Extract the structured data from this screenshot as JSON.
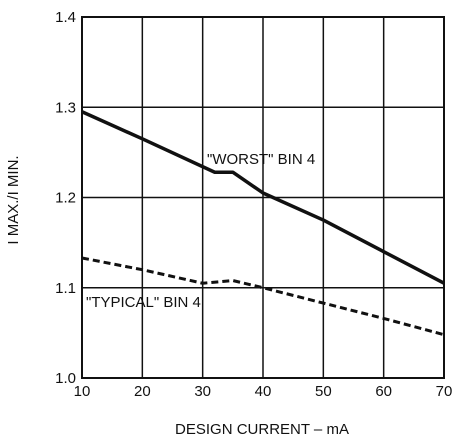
{
  "chart_data": {
    "type": "line",
    "xlabel": "DESIGN CURRENT – mA",
    "ylabel": "I MAX./I MIN.",
    "xlim": [
      10,
      70
    ],
    "ylim": [
      1.0,
      1.4
    ],
    "x_ticks": [
      "10",
      "20",
      "30",
      "40",
      "50",
      "60",
      "70"
    ],
    "y_ticks": [
      "1.0",
      "1.1",
      "1.2",
      "1.3",
      "1.4"
    ],
    "grid": true,
    "series": [
      {
        "name": "\"WORST\" BIN 4",
        "style": "solid",
        "x": [
          10,
          20,
          32,
          35,
          40,
          50,
          60,
          70
        ],
        "y": [
          1.295,
          1.265,
          1.228,
          1.228,
          1.205,
          1.175,
          1.14,
          1.105
        ]
      },
      {
        "name": "\"TYPICAL\" BIN 4",
        "style": "dashed",
        "x": [
          10,
          20,
          30,
          35,
          40,
          50,
          60,
          70
        ],
        "y": [
          1.133,
          1.12,
          1.105,
          1.108,
          1.1,
          1.083,
          1.066,
          1.048
        ]
      }
    ],
    "annotations": [
      "\"WORST\" BIN 4",
      "\"TYPICAL\" BIN 4"
    ]
  }
}
